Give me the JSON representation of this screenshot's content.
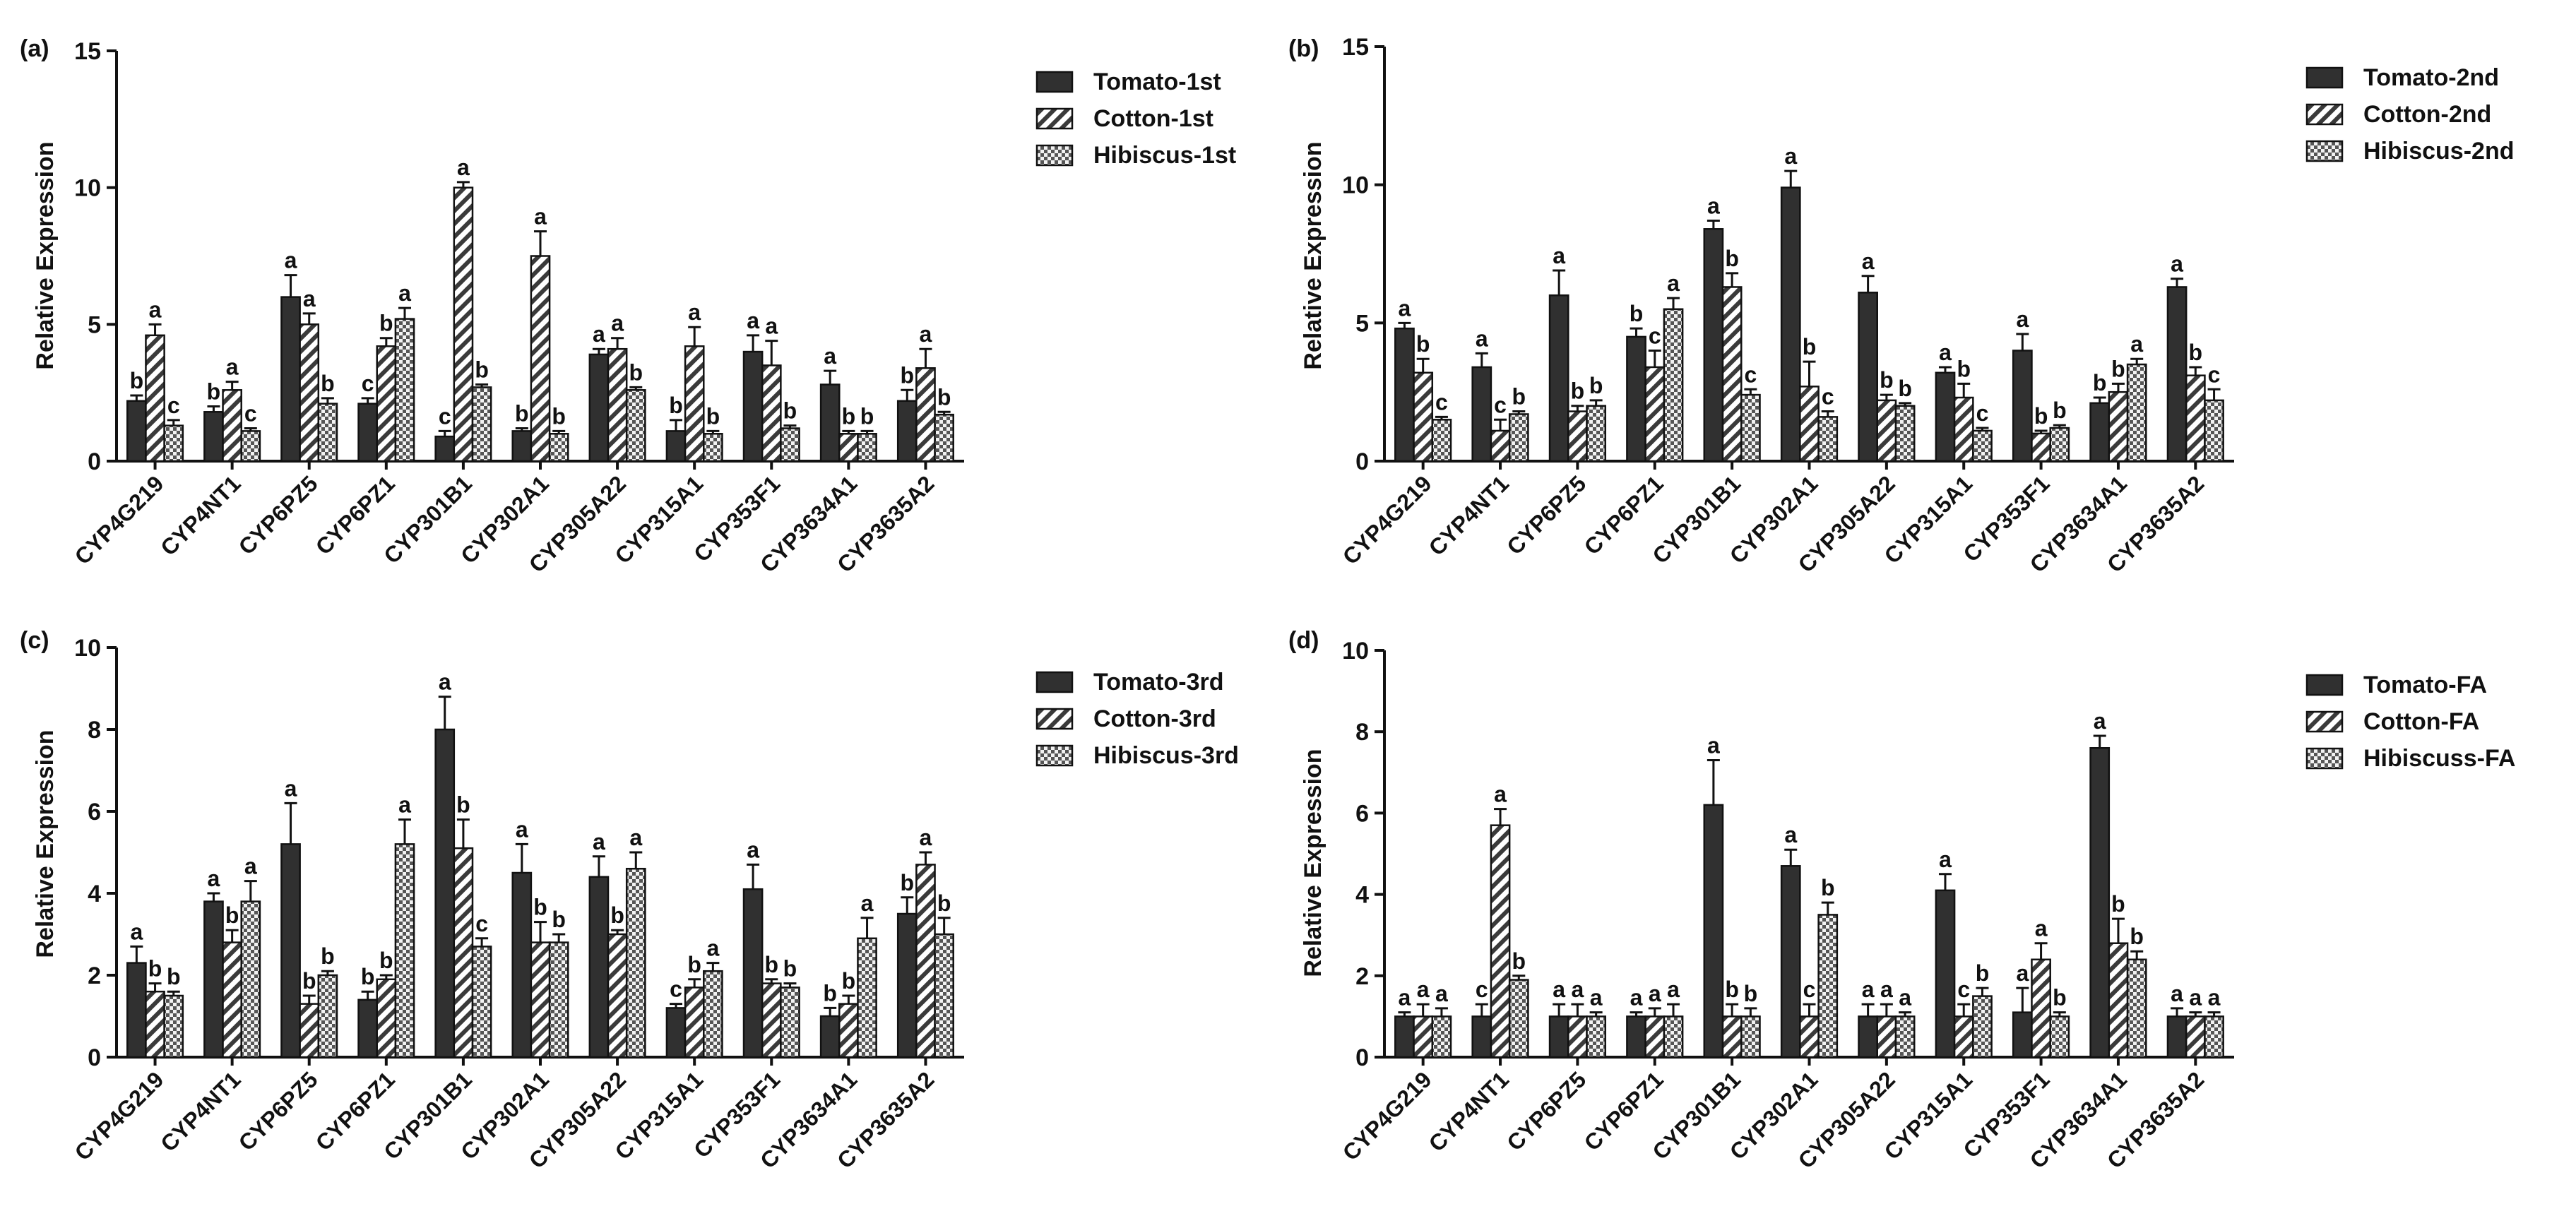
{
  "chart_data": [
    {
      "type": "bar",
      "panel_label": "(a)",
      "ylabel": "Relative Expression",
      "ylim": [
        0,
        15
      ],
      "yticks": [
        0,
        5,
        10,
        15
      ],
      "categories": [
        "CYP4G219",
        "CYP4NT1",
        "CYP6PZ5",
        "CYP6PZ1",
        "CYP301B1",
        "CYP302A1",
        "CYP305A22",
        "CYP315A1",
        "CYP353F1",
        "CYP3634A1",
        "CYP3635A2"
      ],
      "legend_position": "top-right",
      "series": [
        {
          "name": "Tomato-1st",
          "fill": "dark",
          "values": [
            2.2,
            1.8,
            6.0,
            2.1,
            0.9,
            1.1,
            3.9,
            1.1,
            4.0,
            2.8,
            2.2
          ],
          "errors": [
            0.2,
            0.2,
            0.8,
            0.2,
            0.2,
            0.1,
            0.2,
            0.4,
            0.6,
            0.5,
            0.4
          ],
          "letters": [
            "b",
            "b",
            "a",
            "c",
            "c",
            "b",
            "a",
            "b",
            "a",
            "a",
            "b"
          ]
        },
        {
          "name": "Cotton-1st",
          "fill": "hatch",
          "values": [
            4.6,
            2.6,
            5.0,
            4.2,
            10.0,
            7.5,
            4.1,
            4.2,
            3.5,
            1.0,
            3.4
          ],
          "errors": [
            0.4,
            0.3,
            0.4,
            0.3,
            0.2,
            0.9,
            0.4,
            0.7,
            0.9,
            0.1,
            0.7
          ],
          "letters": [
            "a",
            "a",
            "a",
            "b",
            "a",
            "a",
            "a",
            "a",
            "a",
            "b",
            "a"
          ]
        },
        {
          "name": "Hibiscus-1st",
          "fill": "check",
          "values": [
            1.3,
            1.1,
            2.1,
            5.2,
            2.7,
            1.0,
            2.6,
            1.0,
            1.2,
            1.0,
            1.7
          ],
          "errors": [
            0.2,
            0.1,
            0.2,
            0.4,
            0.1,
            0.1,
            0.1,
            0.1,
            0.1,
            0.1,
            0.1
          ],
          "letters": [
            "c",
            "c",
            "b",
            "a",
            "b",
            "b",
            "b",
            "b",
            "b",
            "b",
            "b"
          ]
        }
      ]
    },
    {
      "type": "bar",
      "panel_label": "(b)",
      "ylabel": "Relative Expression",
      "ylim": [
        0,
        15
      ],
      "yticks": [
        0,
        5,
        10,
        15
      ],
      "categories": [
        "CYP4G219",
        "CYP4NT1",
        "CYP6PZ5",
        "CYP6PZ1",
        "CYP301B1",
        "CYP302A1",
        "CYP305A22",
        "CYP315A1",
        "CYP353F1",
        "CYP3634A1",
        "CYP3635A2"
      ],
      "legend_position": "top-right",
      "series": [
        {
          "name": "Tomato-2nd",
          "fill": "dark",
          "values": [
            4.8,
            3.4,
            6.0,
            4.5,
            8.4,
            9.9,
            6.1,
            3.2,
            4.0,
            2.1,
            6.3
          ],
          "errors": [
            0.2,
            0.5,
            0.9,
            0.3,
            0.3,
            0.6,
            0.6,
            0.2,
            0.6,
            0.2,
            0.3
          ],
          "letters": [
            "a",
            "a",
            "a",
            "b",
            "a",
            "a",
            "a",
            "a",
            "a",
            "b",
            "a"
          ]
        },
        {
          "name": "Cotton-2nd",
          "fill": "hatch",
          "values": [
            3.2,
            1.1,
            1.8,
            3.4,
            6.3,
            2.7,
            2.2,
            2.3,
            1.0,
            2.5,
            3.1
          ],
          "errors": [
            0.5,
            0.4,
            0.2,
            0.6,
            0.5,
            0.9,
            0.2,
            0.5,
            0.1,
            0.3,
            0.3
          ],
          "letters": [
            "b",
            "c",
            "b",
            "c",
            "b",
            "b",
            "b",
            "b",
            "b",
            "b",
            "b"
          ]
        },
        {
          "name": "Hibiscus-2nd",
          "fill": "check",
          "values": [
            1.5,
            1.7,
            2.0,
            5.5,
            2.4,
            1.6,
            2.0,
            1.1,
            1.2,
            3.5,
            2.2
          ],
          "errors": [
            0.1,
            0.1,
            0.2,
            0.4,
            0.2,
            0.2,
            0.1,
            0.1,
            0.1,
            0.2,
            0.4
          ],
          "letters": [
            "c",
            "b",
            "b",
            "a",
            "c",
            "c",
            "b",
            "c",
            "b",
            "a",
            "c"
          ]
        }
      ]
    },
    {
      "type": "bar",
      "panel_label": "(c)",
      "ylabel": "Relative Expression",
      "ylim": [
        0,
        10
      ],
      "yticks": [
        0,
        2,
        4,
        6,
        8,
        10
      ],
      "categories": [
        "CYP4G219",
        "CYP4NT1",
        "CYP6PZ5",
        "CYP6PZ1",
        "CYP301B1",
        "CYP302A1",
        "CYP305A22",
        "CYP315A1",
        "CYP353F1",
        "CYP3634A1",
        "CYP3635A2"
      ],
      "legend_position": "top-right",
      "series": [
        {
          "name": "Tomato-3rd",
          "fill": "dark",
          "values": [
            2.3,
            3.8,
            5.2,
            1.4,
            8.0,
            4.5,
            4.4,
            1.2,
            4.1,
            1.0,
            3.5
          ],
          "errors": [
            0.4,
            0.2,
            1.0,
            0.2,
            0.8,
            0.7,
            0.5,
            0.1,
            0.6,
            0.2,
            0.4
          ],
          "letters": [
            "a",
            "a",
            "a",
            "b",
            "a",
            "a",
            "a",
            "c",
            "a",
            "b",
            "b"
          ]
        },
        {
          "name": "Cotton-3rd",
          "fill": "hatch",
          "values": [
            1.6,
            2.8,
            1.3,
            1.9,
            5.1,
            2.8,
            3.0,
            1.7,
            1.8,
            1.3,
            4.7
          ],
          "errors": [
            0.2,
            0.3,
            0.2,
            0.1,
            0.7,
            0.5,
            0.1,
            0.2,
            0.1,
            0.2,
            0.3
          ],
          "letters": [
            "b",
            "b",
            "b",
            "b",
            "b",
            "b",
            "b",
            "b",
            "b",
            "b",
            "a"
          ]
        },
        {
          "name": "Hibiscus-3rd",
          "fill": "check",
          "values": [
            1.5,
            3.8,
            2.0,
            5.2,
            2.7,
            2.8,
            4.6,
            2.1,
            1.7,
            2.9,
            3.0
          ],
          "errors": [
            0.1,
            0.5,
            0.1,
            0.6,
            0.2,
            0.2,
            0.4,
            0.2,
            0.1,
            0.5,
            0.4
          ],
          "letters": [
            "b",
            "a",
            "b",
            "a",
            "c",
            "b",
            "a",
            "a",
            "b",
            "a",
            "b"
          ]
        }
      ]
    },
    {
      "type": "bar",
      "panel_label": "(d)",
      "ylabel": "Relative Expression",
      "ylim": [
        0,
        10
      ],
      "yticks": [
        0,
        2,
        4,
        6,
        8,
        10
      ],
      "categories": [
        "CYP4G219",
        "CYP4NT1",
        "CYP6PZ5",
        "CYP6PZ1",
        "CYP301B1",
        "CYP302A1",
        "CYP305A22",
        "CYP315A1",
        "CYP353F1",
        "CYP3634A1",
        "CYP3635A2"
      ],
      "legend_position": "top-right",
      "series": [
        {
          "name": "Tomato-FA",
          "fill": "dark",
          "values": [
            1.0,
            1.0,
            1.0,
            1.0,
            6.2,
            4.7,
            1.0,
            4.1,
            1.1,
            7.6,
            1.0
          ],
          "errors": [
            0.1,
            0.3,
            0.3,
            0.1,
            1.1,
            0.4,
            0.3,
            0.4,
            0.6,
            0.3,
            0.2
          ],
          "letters": [
            "a",
            "c",
            "a",
            "a",
            "a",
            "a",
            "a",
            "a",
            "a",
            "a",
            "a"
          ]
        },
        {
          "name": "Cotton-FA",
          "fill": "hatch",
          "values": [
            1.0,
            5.7,
            1.0,
            1.0,
            1.0,
            1.0,
            1.0,
            1.0,
            2.4,
            2.8,
            1.0
          ],
          "errors": [
            0.3,
            0.4,
            0.3,
            0.2,
            0.3,
            0.3,
            0.3,
            0.3,
            0.4,
            0.6,
            0.1
          ],
          "letters": [
            "a",
            "a",
            "a",
            "a",
            "b",
            "c",
            "a",
            "c",
            "a",
            "b",
            "a"
          ]
        },
        {
          "name": "Hibiscuss-FA",
          "fill": "check",
          "values": [
            1.0,
            1.9,
            1.0,
            1.0,
            1.0,
            3.5,
            1.0,
            1.5,
            1.0,
            2.4,
            1.0
          ],
          "errors": [
            0.2,
            0.1,
            0.1,
            0.3,
            0.2,
            0.3,
            0.1,
            0.2,
            0.1,
            0.2,
            0.1
          ],
          "letters": [
            "a",
            "b",
            "a",
            "a",
            "b",
            "b",
            "a",
            "b",
            "b",
            "b",
            "a"
          ]
        }
      ]
    }
  ]
}
